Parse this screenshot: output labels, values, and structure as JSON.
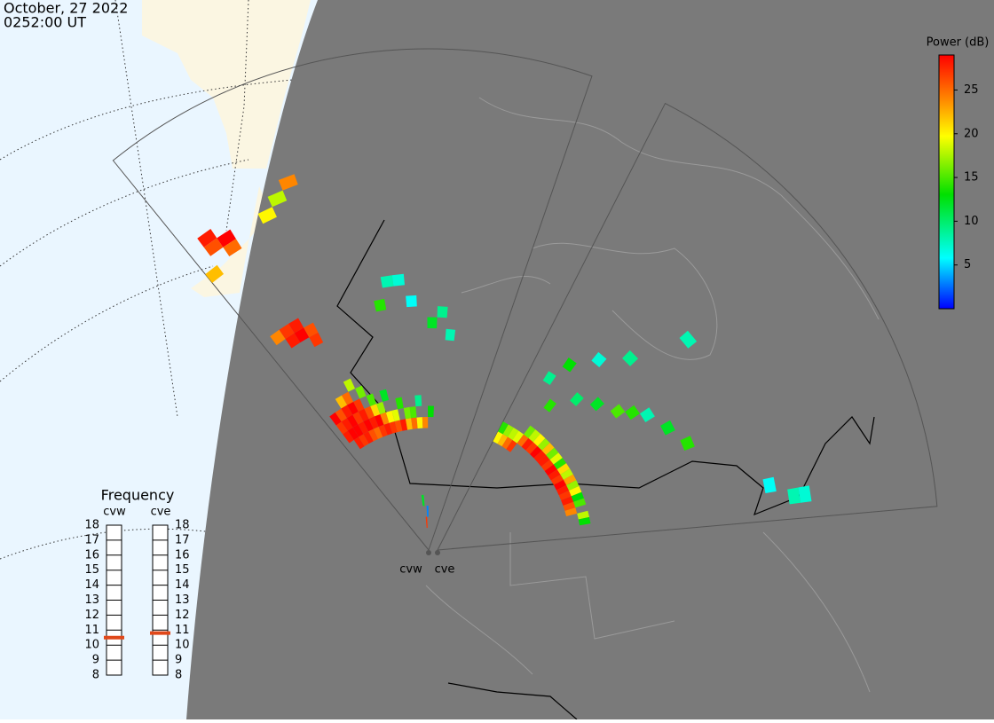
{
  "header": {
    "date": "October, 27 2022",
    "time": "0252:00 UT"
  },
  "colorbar": {
    "title": "Power (dB)",
    "lim": [
      0,
      29
    ],
    "ticks": [
      5,
      10,
      15,
      20,
      25
    ]
  },
  "frequency": {
    "title": "Frequency",
    "lim": [
      8,
      18
    ],
    "ticks": [
      8,
      9,
      10,
      11,
      12,
      13,
      14,
      15,
      16,
      17,
      18
    ],
    "radars": [
      {
        "name": "cvw",
        "value": 10.5
      },
      {
        "name": "cve",
        "value": 10.8
      }
    ]
  },
  "radars": [
    {
      "name": "cvw",
      "echoes": [
        [
          1,
          12,
          28
        ],
        [
          1,
          13,
          27
        ],
        [
          1,
          14,
          29
        ],
        [
          2,
          11,
          28
        ],
        [
          2,
          12,
          29
        ],
        [
          2,
          13,
          28
        ],
        [
          2,
          14,
          26
        ],
        [
          3,
          11,
          27
        ],
        [
          3,
          12,
          29
        ],
        [
          3,
          13,
          29
        ],
        [
          3,
          14,
          28
        ],
        [
          3,
          15,
          22
        ],
        [
          4,
          11,
          28
        ],
        [
          4,
          12,
          28
        ],
        [
          4,
          13,
          27
        ],
        [
          4,
          14,
          29
        ],
        [
          4,
          15,
          25
        ],
        [
          5,
          11,
          26
        ],
        [
          5,
          12,
          29
        ],
        [
          5,
          13,
          28
        ],
        [
          5,
          14,
          27
        ],
        [
          5,
          16,
          18
        ],
        [
          6,
          11,
          25
        ],
        [
          6,
          12,
          28
        ],
        [
          6,
          13,
          26
        ],
        [
          6,
          15,
          16
        ],
        [
          7,
          11,
          27
        ],
        [
          7,
          12,
          29
        ],
        [
          7,
          13,
          21
        ],
        [
          7,
          14,
          15
        ],
        [
          8,
          11,
          28
        ],
        [
          8,
          12,
          24
        ],
        [
          8,
          13,
          17
        ],
        [
          9,
          11,
          27
        ],
        [
          9,
          12,
          20
        ],
        [
          9,
          14,
          12
        ],
        [
          10,
          11,
          26
        ],
        [
          10,
          12,
          19
        ],
        [
          11,
          11,
          28
        ],
        [
          11,
          13,
          14
        ],
        [
          12,
          11,
          22
        ],
        [
          12,
          12,
          16
        ],
        [
          13,
          11,
          25
        ],
        [
          13,
          12,
          15
        ],
        [
          14,
          11,
          20
        ],
        [
          14,
          13,
          9
        ],
        [
          15,
          11,
          24
        ],
        [
          16,
          12,
          13
        ],
        [
          2,
          22,
          28
        ],
        [
          2,
          23,
          27
        ],
        [
          3,
          22,
          29
        ],
        [
          3,
          23,
          28
        ],
        [
          4,
          21,
          27
        ],
        [
          4,
          22,
          26
        ],
        [
          1,
          23,
          24
        ],
        [
          1,
          33,
          26
        ],
        [
          1,
          34,
          28
        ],
        [
          2,
          33,
          29
        ],
        [
          2,
          32,
          25
        ],
        [
          5,
          33,
          20
        ],
        [
          6,
          34,
          18
        ],
        [
          7,
          35,
          24
        ],
        [
          0,
          31,
          22
        ],
        [
          12,
          24,
          8
        ],
        [
          13,
          24,
          7
        ],
        [
          14,
          22,
          6
        ],
        [
          16,
          20,
          12
        ],
        [
          11,
          22,
          14
        ],
        [
          17,
          21,
          9
        ],
        [
          18,
          19,
          8
        ],
        [
          14,
          2,
          27
        ],
        [
          15,
          3,
          3
        ],
        [
          13,
          4,
          12
        ]
      ]
    },
    {
      "name": "cve",
      "echoes": [
        [
          0,
          11,
          20
        ],
        [
          0,
          12,
          14
        ],
        [
          1,
          11,
          22
        ],
        [
          1,
          12,
          17
        ],
        [
          2,
          11,
          25
        ],
        [
          2,
          12,
          18
        ],
        [
          3,
          11,
          27
        ],
        [
          3,
          12,
          19
        ],
        [
          4,
          12,
          25
        ],
        [
          4,
          13,
          16
        ],
        [
          5,
          12,
          28
        ],
        [
          5,
          13,
          18
        ],
        [
          6,
          12,
          27
        ],
        [
          6,
          13,
          20
        ],
        [
          7,
          12,
          29
        ],
        [
          7,
          13,
          17
        ],
        [
          8,
          12,
          28
        ],
        [
          8,
          13,
          22
        ],
        [
          9,
          12,
          28
        ],
        [
          9,
          13,
          16
        ],
        [
          10,
          12,
          27
        ],
        [
          10,
          13,
          19
        ],
        [
          11,
          12,
          29
        ],
        [
          11,
          13,
          14
        ],
        [
          12,
          12,
          28
        ],
        [
          12,
          13,
          21
        ],
        [
          13,
          12,
          27
        ],
        [
          13,
          13,
          18
        ],
        [
          14,
          12,
          29
        ],
        [
          14,
          13,
          23
        ],
        [
          15,
          12,
          28
        ],
        [
          15,
          13,
          17
        ],
        [
          16,
          12,
          27
        ],
        [
          16,
          13,
          20
        ],
        [
          17,
          12,
          28
        ],
        [
          17,
          13,
          13
        ],
        [
          18,
          12,
          26
        ],
        [
          18,
          13,
          15
        ],
        [
          19,
          12,
          24
        ],
        [
          20,
          13,
          18
        ],
        [
          21,
          13,
          13
        ],
        [
          4,
          16,
          14
        ],
        [
          6,
          18,
          10
        ],
        [
          8,
          19,
          12
        ],
        [
          10,
          20,
          15
        ],
        [
          11,
          21,
          14
        ],
        [
          12,
          22,
          8
        ],
        [
          14,
          23,
          12
        ],
        [
          16,
          24,
          14
        ],
        [
          5,
          22,
          7
        ],
        [
          7,
          24,
          9
        ],
        [
          9,
          29,
          8
        ],
        [
          22,
          32,
          8
        ],
        [
          22,
          33,
          7
        ],
        [
          21,
          30,
          6
        ],
        [
          3,
          20,
          13
        ],
        [
          2,
          18,
          9
        ]
      ]
    }
  ]
}
